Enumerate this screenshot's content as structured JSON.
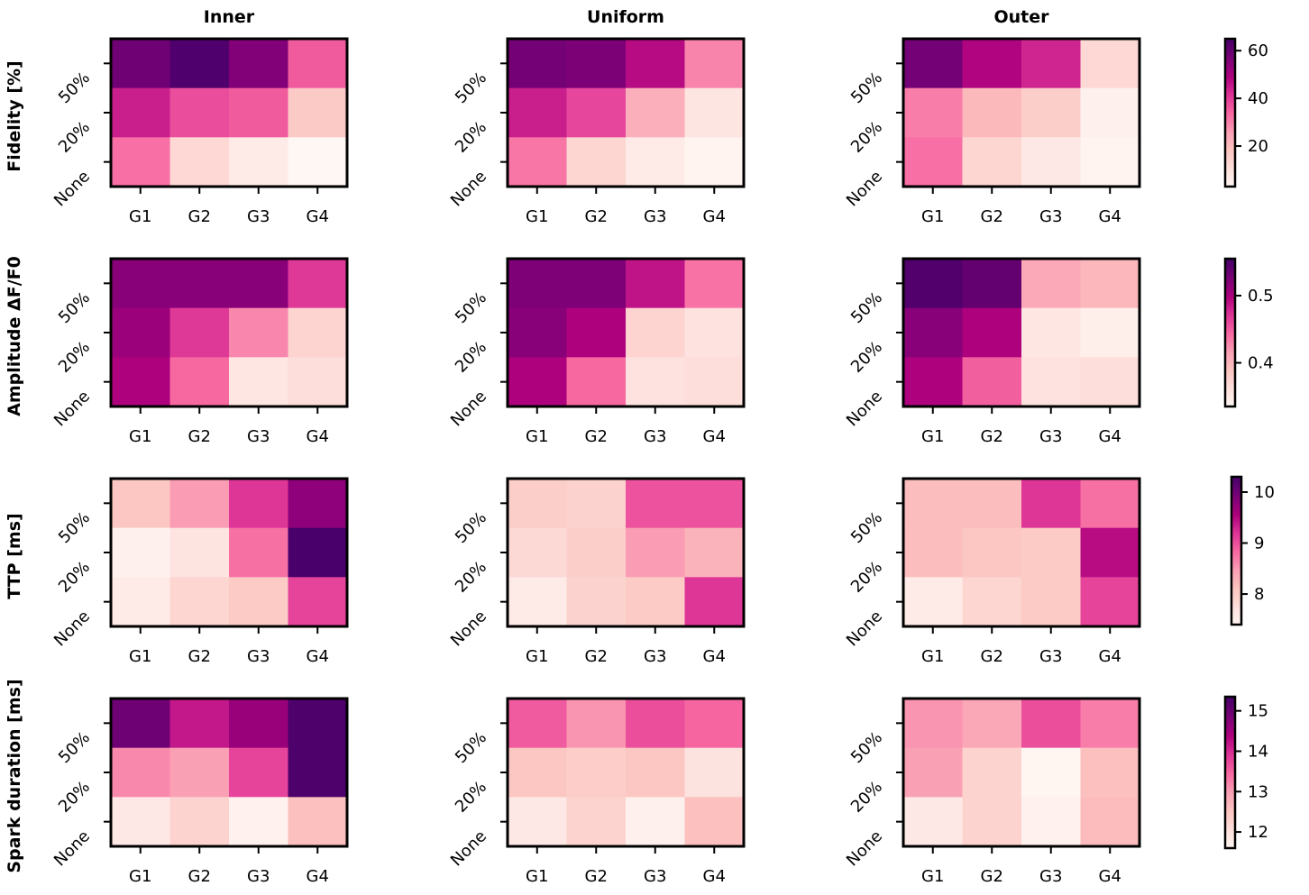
{
  "figure": {
    "columns": [
      "Inner",
      "Uniform",
      "Outer"
    ],
    "x_categories": [
      "G1",
      "G2",
      "G3",
      "G4"
    ],
    "y_categories": [
      "None",
      "20%",
      "50%"
    ]
  },
  "chart_data": [
    {
      "type": "heatmap",
      "row_label": "Fidelity [%]",
      "colorbar": {
        "min": 3,
        "max": 65,
        "ticks": [
          20,
          40,
          60
        ],
        "tick_labels": [
          "20",
          "40",
          "60"
        ]
      },
      "panels": [
        {
          "column": "Inner",
          "values": {
            "50%": [
              59,
              64,
              56,
              36
            ],
            "20%": [
              45,
              38,
              36,
              17
            ],
            "None": [
              33,
              13,
              7,
              3
            ]
          }
        },
        {
          "column": "Uniform",
          "values": {
            "50%": [
              58,
              57,
              48,
              30
            ],
            "20%": [
              45,
              39,
              23,
              9
            ],
            "None": [
              32,
              14,
              7,
              4
            ]
          }
        },
        {
          "column": "Outer",
          "values": {
            "50%": [
              58,
              49,
              44,
              13
            ],
            "20%": [
              31,
              21,
              16,
              5
            ],
            "None": [
              33,
              14,
              8,
              4
            ]
          }
        }
      ]
    },
    {
      "type": "heatmap",
      "row_label": "Amplitude ΔF/F0",
      "colorbar": {
        "min": 0.335,
        "max": 0.555,
        "ticks": [
          0.4,
          0.5
        ],
        "tick_labels": [
          "0.4",
          "0.5"
        ]
      },
      "panels": [
        {
          "column": "Inner",
          "values": {
            "50%": [
              0.52,
              0.52,
              0.52,
              0.47
            ],
            "20%": [
              0.51,
              0.47,
              0.43,
              0.375
            ],
            "None": [
              0.5,
              0.445,
              0.355,
              0.365
            ]
          }
        },
        {
          "column": "Uniform",
          "values": {
            "50%": [
              0.525,
              0.525,
              0.49,
              0.44
            ],
            "20%": [
              0.52,
              0.5,
              0.375,
              0.36
            ],
            "None": [
              0.5,
              0.445,
              0.36,
              0.365
            ]
          }
        },
        {
          "column": "Outer",
          "values": {
            "50%": [
              0.55,
              0.54,
              0.41,
              0.4
            ],
            "20%": [
              0.52,
              0.5,
              0.355,
              0.345
            ],
            "None": [
              0.5,
              0.45,
              0.36,
              0.365
            ]
          }
        }
      ]
    },
    {
      "type": "heatmap",
      "row_label": "TTP [ms]",
      "colorbar": {
        "min": 7.4,
        "max": 10.3,
        "ticks": [
          8,
          9,
          10
        ],
        "tick_labels": [
          "8",
          "9",
          "10"
        ]
      },
      "panels": [
        {
          "column": "Inner",
          "values": {
            "50%": [
              8.1,
              8.5,
              9.2,
              9.8
            ],
            "20%": [
              7.5,
              7.7,
              8.8,
              10.3
            ],
            "None": [
              7.6,
              7.9,
              8.05,
              9.1
            ]
          }
        },
        {
          "column": "Uniform",
          "values": {
            "50%": [
              8.0,
              7.95,
              9.0,
              9.0
            ],
            "20%": [
              7.85,
              8.0,
              8.5,
              8.3
            ],
            "None": [
              7.6,
              7.95,
              8.05,
              9.2
            ]
          }
        },
        {
          "column": "Outer",
          "values": {
            "50%": [
              8.2,
              8.2,
              9.2,
              8.8
            ],
            "20%": [
              8.2,
              8.1,
              8.05,
              9.5
            ],
            "None": [
              7.6,
              7.9,
              8.05,
              9.1
            ]
          }
        }
      ]
    },
    {
      "type": "heatmap",
      "row_label": "Spark duration [ms]",
      "colorbar": {
        "min": 11.6,
        "max": 15.35,
        "ticks": [
          12,
          13,
          14,
          15
        ],
        "tick_labels": [
          "12",
          "13",
          "14",
          "15"
        ]
      },
      "panels": [
        {
          "column": "Inner",
          "values": {
            "50%": [
              15.0,
              14.2,
              14.6,
              15.3
            ],
            "20%": [
              13.2,
              13.0,
              13.8,
              15.3
            ],
            "None": [
              11.9,
              12.3,
              11.7,
              12.6
            ]
          }
        },
        {
          "column": "Uniform",
          "values": {
            "50%": [
              13.6,
              13.1,
              13.7,
              13.5
            ],
            "20%": [
              12.5,
              12.4,
              12.5,
              12.0
            ],
            "None": [
              11.9,
              12.3,
              11.75,
              12.6
            ]
          }
        },
        {
          "column": "Outer",
          "values": {
            "50%": [
              13.1,
              12.9,
              13.7,
              13.3
            ],
            "20%": [
              13.0,
              12.3,
              11.65,
              12.6
            ],
            "None": [
              11.9,
              12.3,
              11.7,
              12.65
            ]
          }
        }
      ]
    }
  ]
}
